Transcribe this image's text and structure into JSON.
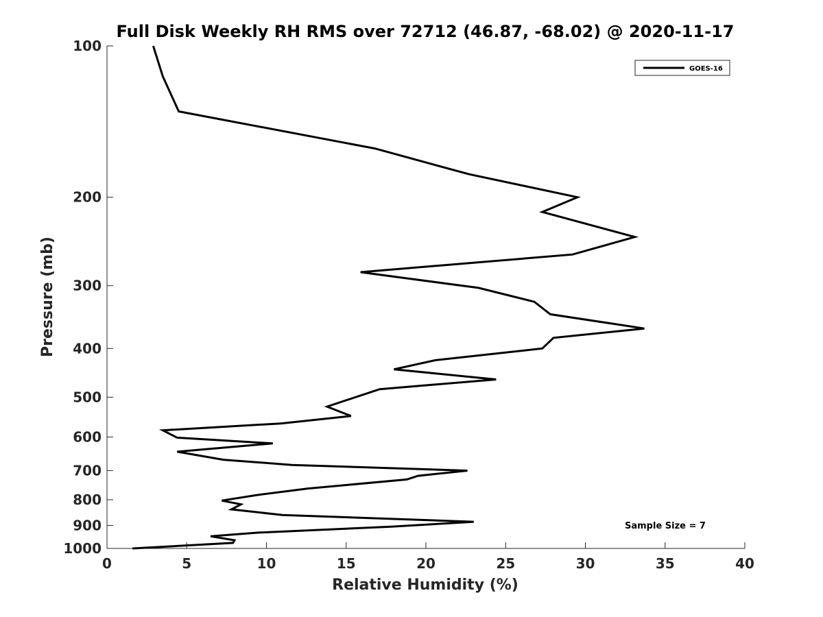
{
  "chart_data": {
    "type": "line",
    "title": "Full Disk Weekly RH RMS over 72712 (46.87, -68.02) @ 2020-11-17",
    "xlabel": "Relative Humidity (%)",
    "ylabel": "Pressure (mb)",
    "xlim": [
      0,
      40
    ],
    "ylim": [
      100,
      1000
    ],
    "yscale": "log",
    "y_reversed": true,
    "xticks": [
      0,
      5,
      10,
      15,
      20,
      25,
      30,
      35,
      40
    ],
    "yticks": [
      100,
      200,
      300,
      400,
      500,
      600,
      700,
      800,
      900,
      1000
    ],
    "grid": false,
    "legend_position": "top-right",
    "series": [
      {
        "name": "GOES-16",
        "color": "#000000",
        "points": [
          [
            2.9,
            100
          ],
          [
            3.5,
            115
          ],
          [
            4.5,
            135
          ],
          [
            16.8,
            160
          ],
          [
            22.7,
            180
          ],
          [
            29.5,
            200
          ],
          [
            27.3,
            214
          ],
          [
            33.1,
            240
          ],
          [
            29.2,
            260
          ],
          [
            15.9,
            282
          ],
          [
            23.3,
            303
          ],
          [
            26.8,
            323
          ],
          [
            27.8,
            342
          ],
          [
            33.7,
            365
          ],
          [
            28.0,
            381
          ],
          [
            27.3,
            400
          ],
          [
            20.6,
            422
          ],
          [
            18.0,
            440
          ],
          [
            24.4,
            461
          ],
          [
            17.1,
            482
          ],
          [
            13.8,
            522
          ],
          [
            15.3,
            545
          ],
          [
            10.9,
            564
          ],
          [
            3.5,
            582
          ],
          [
            4.4,
            602
          ],
          [
            10.4,
            618
          ],
          [
            4.4,
            642
          ],
          [
            7.3,
            666
          ],
          [
            11.6,
            682
          ],
          [
            22.6,
            700
          ],
          [
            19.5,
            717
          ],
          [
            18.8,
            729
          ],
          [
            12.6,
            760
          ],
          [
            9.4,
            783
          ],
          [
            7.2,
            803
          ],
          [
            8.4,
            817
          ],
          [
            7.8,
            836
          ],
          [
            11.0,
            858
          ],
          [
            23.0,
            885
          ],
          [
            17.8,
            905
          ],
          [
            9.5,
            930
          ],
          [
            6.5,
            946
          ],
          [
            8.0,
            963
          ],
          [
            7.9,
            975
          ],
          [
            1.6,
            1000
          ]
        ]
      }
    ],
    "annotations": [
      "Sample Size = 7"
    ]
  }
}
